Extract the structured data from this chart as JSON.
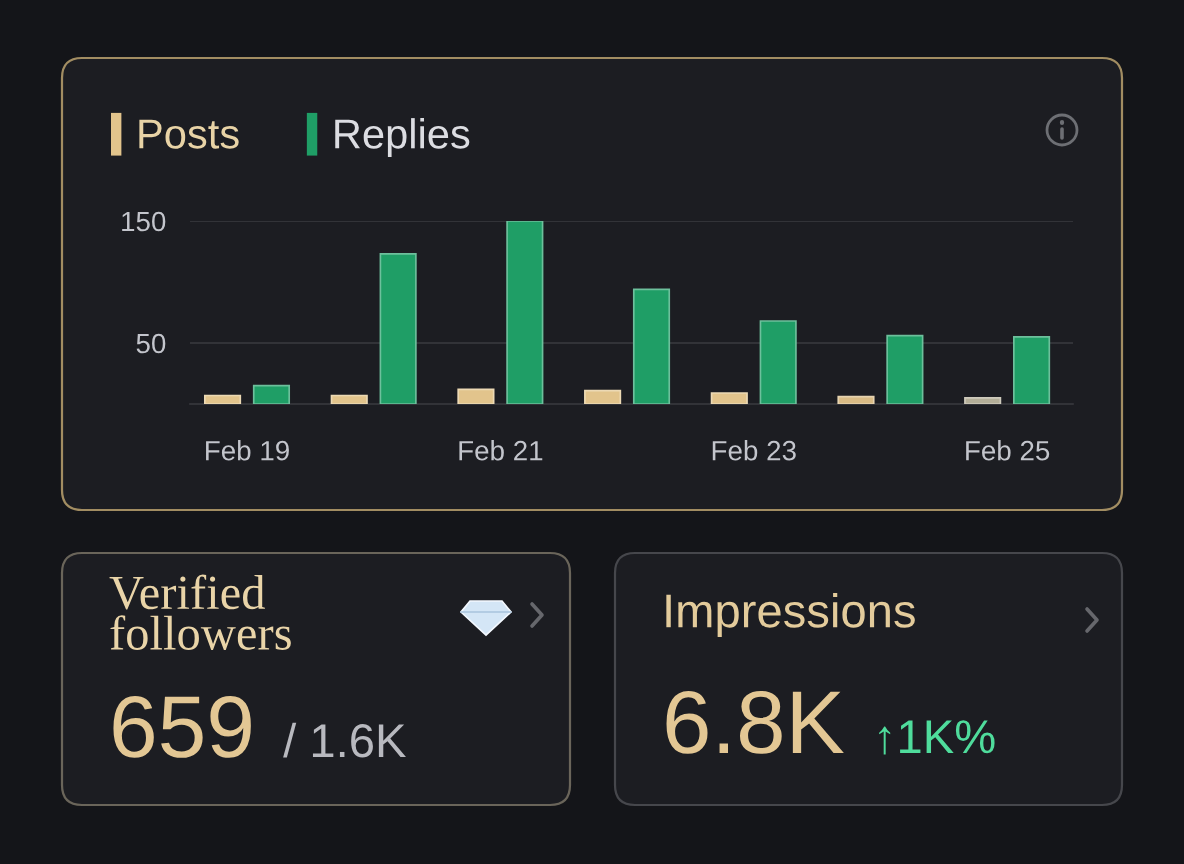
{
  "chart_data": [
    {
      "type": "bar",
      "categories": [
        "Feb 19",
        null,
        "Feb 21",
        null,
        "Feb 23",
        null,
        "Feb 25"
      ],
      "series": [
        {
          "name": "Posts",
          "color": "#e2c48c",
          "colors": [
            "#e2c48c",
            "#e2c48c",
            "#e2c48c",
            "#e2c48c",
            "#e2c48c",
            "#d9bb85",
            "#b3ae98"
          ],
          "values": [
            7,
            7,
            12,
            11,
            9,
            6,
            5
          ]
        },
        {
          "name": "Replies",
          "color": "#1f9e66",
          "values": [
            15,
            123,
            150,
            94,
            68,
            56,
            55
          ]
        }
      ],
      "ylim": [
        0,
        150
      ],
      "yticks": [
        50,
        150
      ],
      "grid": "y",
      "legend": "top left"
    },
    {
      "type": "other",
      "title": "Verified followers",
      "annotations": [
        "659",
        "/ 1.6K"
      ]
    },
    {
      "type": "other",
      "title": "Impressions",
      "annotations": [
        "6.8K",
        "↑1K%"
      ]
    }
  ]
}
